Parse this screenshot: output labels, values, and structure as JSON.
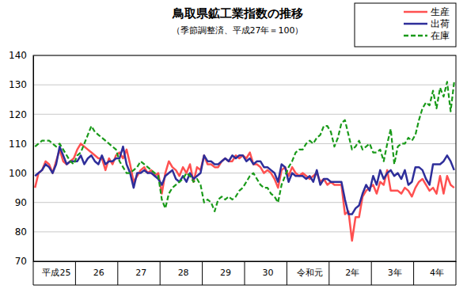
{
  "chart_data": {
    "type": "line",
    "title": "鳥取県鉱工業指数の推移",
    "subtitle": "（季節調整済、平成27年＝100）",
    "categories": [
      null,
      null,
      null,
      null,
      null,
      null,
      "平成25",
      null,
      null,
      null,
      null,
      null,
      null,
      null,
      null,
      null,
      null,
      null,
      "26",
      null,
      null,
      null,
      null,
      null,
      null,
      null,
      null,
      null,
      null,
      null,
      "27",
      null,
      null,
      null,
      null,
      null,
      null,
      null,
      null,
      null,
      null,
      null,
      "28",
      null,
      null,
      null,
      null,
      null,
      null,
      null,
      null,
      null,
      null,
      null,
      "29",
      null,
      null,
      null,
      null,
      null,
      null,
      null,
      null,
      null,
      null,
      null,
      "30",
      null,
      null,
      null,
      null,
      null,
      null,
      null,
      null,
      null,
      null,
      null,
      "令和元",
      null,
      null,
      null,
      null,
      null,
      null,
      null,
      null,
      null,
      null,
      null,
      "2年",
      null,
      null,
      null,
      null,
      null,
      null,
      null,
      null,
      null,
      null,
      null,
      "3年",
      null,
      null,
      null,
      null,
      null,
      null,
      null,
      null,
      null,
      null,
      null,
      "4年",
      null,
      null,
      null,
      null,
      null
    ],
    "series": [
      {
        "name": "生産",
        "color": "#ff5050",
        "line_style": "solid",
        "values": [
          95,
          100,
          101,
          104,
          103,
          100,
          104,
          108,
          104,
          103,
          104,
          105,
          108,
          110,
          109,
          108,
          107,
          106,
          105,
          105,
          101,
          105,
          103,
          106,
          107,
          105,
          108,
          103,
          97,
          99,
          101,
          102,
          100,
          101,
          99,
          100,
          93,
          100,
          104,
          102,
          101,
          99,
          102,
          100,
          103,
          97,
          102,
          101,
          106,
          103,
          103,
          102,
          102,
          104,
          105,
          104,
          104,
          106,
          105,
          106,
          105,
          107,
          103,
          103,
          102,
          100,
          101,
          100,
          98,
          95,
          101,
          102,
          99,
          102,
          100,
          99,
          100,
          99,
          98,
          99,
          100,
          97,
          98,
          96,
          97,
          96,
          96,
          96,
          86,
          87,
          77,
          85,
          85,
          92,
          94,
          95,
          96,
          93,
          97,
          96,
          101,
          94,
          94,
          94,
          93,
          95,
          94,
          92,
          95,
          97,
          98,
          96,
          94,
          95,
          93,
          99,
          93,
          99,
          96,
          95
        ]
      },
      {
        "name": "出荷",
        "color": "#2e2e9a",
        "line_style": "solid",
        "values": [
          99,
          100,
          101,
          103,
          102,
          100,
          103,
          109,
          106,
          103,
          104,
          104,
          104,
          106,
          103,
          105,
          106,
          104,
          103,
          106,
          103,
          104,
          104,
          105,
          105,
          109,
          103,
          100,
          95,
          100,
          100,
          101,
          100,
          100,
          99,
          98,
          96,
          99,
          100,
          101,
          98,
          97,
          99,
          97,
          100,
          98,
          99,
          100,
          106,
          104,
          104,
          103,
          103,
          104,
          105,
          104,
          106,
          105,
          106,
          106,
          104,
          105,
          103,
          104,
          104,
          102,
          102,
          101,
          100,
          97,
          103,
          102,
          97,
          100,
          99,
          99,
          99,
          98,
          99,
          97,
          101,
          96,
          98,
          98,
          97,
          97,
          97,
          97,
          91,
          86,
          86,
          88,
          89,
          93,
          96,
          94,
          99,
          96,
          101,
          98,
          100,
          101,
          99,
          100,
          98,
          101,
          96,
          97,
          102,
          102,
          101,
          98,
          96,
          103,
          103,
          103,
          104,
          106,
          104,
          101
        ]
      },
      {
        "name": "在庫",
        "color": "#1a9a1a",
        "line_style": "dashed",
        "values": [
          109,
          110,
          111,
          111,
          111,
          110,
          109,
          110,
          108,
          106,
          104,
          103,
          106,
          107,
          110,
          113,
          116,
          114,
          113,
          112,
          111,
          110,
          109,
          108,
          104,
          102,
          100,
          100,
          101,
          102,
          104,
          103,
          102,
          101,
          100,
          99,
          91,
          88,
          93,
          95,
          96,
          97,
          98,
          100,
          99,
          97,
          98,
          96,
          90,
          91,
          90,
          87,
          91,
          92,
          91,
          92,
          91,
          92,
          94,
          95,
          97,
          99,
          100,
          98,
          96,
          95,
          95,
          93,
          92,
          90,
          96,
          99,
          102,
          104,
          107,
          108,
          108,
          110,
          111,
          110,
          112,
          113,
          116,
          116,
          114,
          109,
          112,
          117,
          118,
          113,
          108,
          109,
          111,
          108,
          109,
          110,
          107,
          107,
          108,
          104,
          110,
          115,
          103,
          109,
          110,
          110,
          112,
          111,
          113,
          118,
          122,
          124,
          123,
          128,
          122,
          129,
          126,
          131,
          121,
          131
        ]
      }
    ],
    "ylim": [
      70,
      140
    ],
    "yticks": [
      70,
      80,
      90,
      100,
      110,
      120,
      130,
      140
    ],
    "grid": true,
    "legend": "top-right"
  }
}
